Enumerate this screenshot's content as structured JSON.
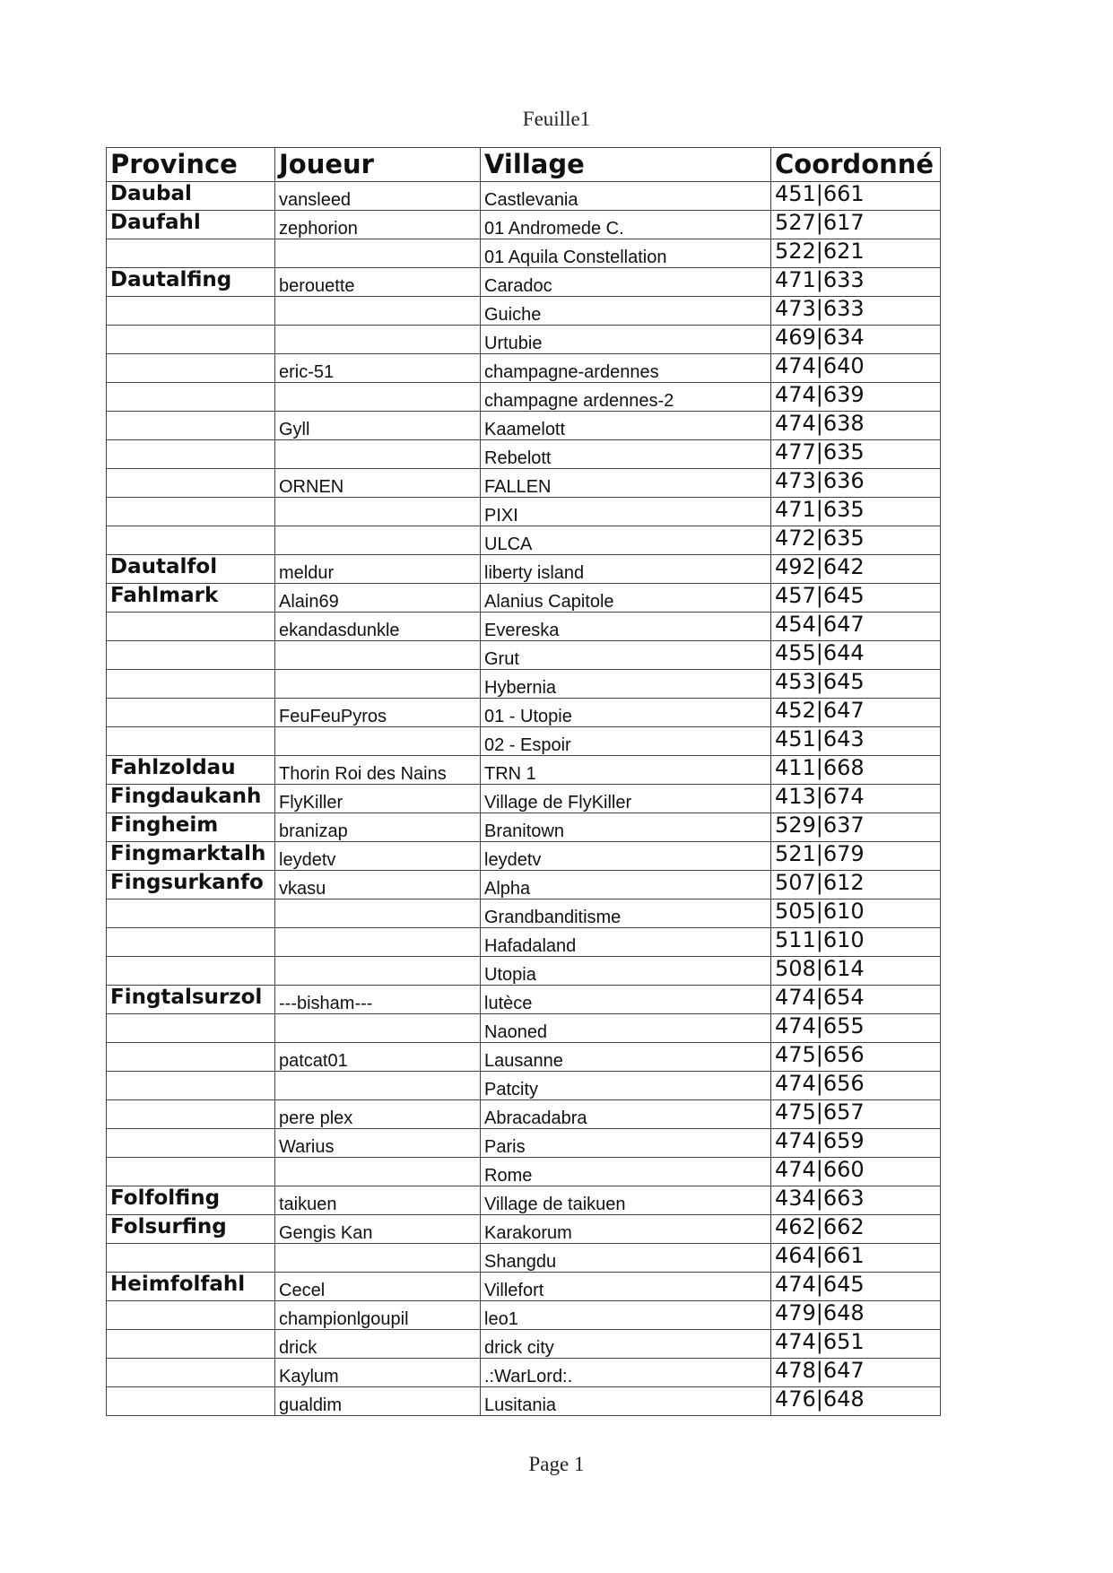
{
  "header": {
    "title": "Feuille1"
  },
  "table": {
    "columns": [
      "Province",
      "Joueur",
      "Village",
      "Coordonné"
    ],
    "rows": [
      [
        "Daubal",
        "vansleed",
        "Castlevania",
        "451|661"
      ],
      [
        "Daufahl",
        "zephorion",
        "01 Andromede C.",
        "527|617"
      ],
      [
        null,
        null,
        "01 Aquila Constellation",
        "522|621"
      ],
      [
        "Dautalfing",
        "berouette",
        "Caradoc",
        "471|633"
      ],
      [
        null,
        null,
        "Guiche",
        "473|633"
      ],
      [
        null,
        null,
        "Urtubie",
        "469|634"
      ],
      [
        null,
        "eric-51",
        "champagne-ardennes",
        "474|640"
      ],
      [
        null,
        null,
        "champagne ardennes-2",
        "474|639"
      ],
      [
        null,
        "Gyll",
        "Kaamelott",
        "474|638"
      ],
      [
        null,
        null,
        "Rebelott",
        "477|635"
      ],
      [
        null,
        "ORNEN",
        "FALLEN",
        "473|636"
      ],
      [
        null,
        null,
        "PIXI",
        "471|635"
      ],
      [
        null,
        null,
        "ULCA",
        "472|635"
      ],
      [
        "Dautalfol",
        "meldur",
        "liberty island",
        "492|642"
      ],
      [
        "Fahlmark",
        "Alain69",
        "Alanius Capitole",
        "457|645"
      ],
      [
        null,
        "ekandasdunkle",
        "Evereska",
        "454|647"
      ],
      [
        null,
        null,
        "Grut",
        "455|644"
      ],
      [
        null,
        null,
        "Hybernia",
        "453|645"
      ],
      [
        null,
        "FeuFeuPyros",
        "01 - Utopie",
        "452|647"
      ],
      [
        null,
        null,
        "02 - Espoir",
        "451|643"
      ],
      [
        "Fahlzoldau",
        "Thorin Roi des Nains",
        "TRN 1",
        "411|668"
      ],
      [
        "Fingdaukanh",
        "FlyKiller",
        "Village de FlyKiller",
        "413|674"
      ],
      [
        "Fingheim",
        "branizap",
        "Branitown",
        "529|637"
      ],
      [
        "Fingmarktalh",
        "leydetv",
        "leydetv",
        "521|679"
      ],
      [
        "Fingsurkanfo",
        "vkasu",
        "Alpha",
        "507|612"
      ],
      [
        null,
        null,
        "Grandbanditisme",
        "505|610"
      ],
      [
        null,
        null,
        "Hafadaland",
        "511|610"
      ],
      [
        null,
        null,
        "Utopia",
        "508|614"
      ],
      [
        "Fingtalsurzol",
        "---bisham---",
        "lutèce",
        "474|654"
      ],
      [
        null,
        null,
        "Naoned",
        "474|655"
      ],
      [
        null,
        "patcat01",
        "Lausanne",
        "475|656"
      ],
      [
        null,
        null,
        "Patcity",
        "474|656"
      ],
      [
        null,
        "pere plex",
        "Abracadabra",
        "475|657"
      ],
      [
        null,
        "Warius",
        "Paris",
        "474|659"
      ],
      [
        null,
        null,
        "Rome",
        "474|660"
      ],
      [
        "Folfolfing",
        "taikuen",
        "Village de taikuen",
        "434|663"
      ],
      [
        "Folsurfing",
        "Gengis Kan",
        "Karakorum",
        "462|662"
      ],
      [
        null,
        null,
        "Shangdu",
        "464|661"
      ],
      [
        "Heimfolfahl",
        "Cecel",
        "Villefort",
        "474|645"
      ],
      [
        null,
        "championlgoupil",
        "leo1",
        "479|648"
      ],
      [
        null,
        "drick",
        "drick city",
        "474|651"
      ],
      [
        null,
        "Kaylum",
        ".:WarLord:.",
        "478|647"
      ],
      [
        null,
        "gualdim",
        "Lusitania",
        "476|648"
      ]
    ]
  },
  "footer": {
    "page": "Page 1"
  }
}
